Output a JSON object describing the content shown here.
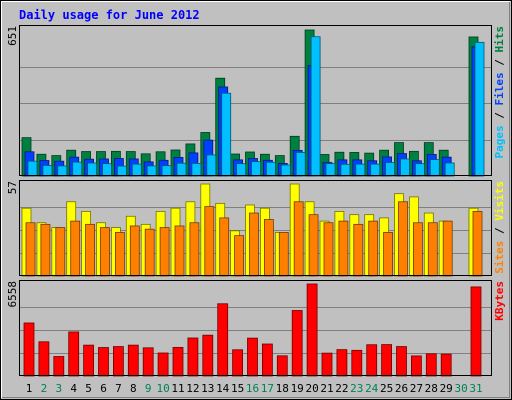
{
  "chart_data": [
    {
      "type": "bar",
      "title": "Daily usage for June 2012",
      "categories": [
        "1",
        "2",
        "3",
        "4",
        "5",
        "6",
        "7",
        "8",
        "9",
        "10",
        "11",
        "12",
        "13",
        "14",
        "15",
        "16",
        "17",
        "18",
        "19",
        "20",
        "21",
        "22",
        "23",
        "24",
        "25",
        "26",
        "27",
        "28",
        "29",
        "30",
        "31"
      ],
      "weekend_days": [
        "2",
        "3",
        "9",
        "10",
        "16",
        "17",
        "23",
        "24",
        "30",
        "31"
      ],
      "ymax_label": "651",
      "axis_legend": [
        {
          "text": "Pages",
          "color": "#00c0ff"
        },
        {
          "text": " / ",
          "color": "#000000"
        },
        {
          "text": "Files",
          "color": "#0040ff"
        },
        {
          "text": " / ",
          "color": "#000000"
        },
        {
          "text": "Hits",
          "color": "#008040"
        }
      ],
      "ylim": [
        0,
        651
      ],
      "grid": true,
      "series": [
        {
          "name": "Hits",
          "color": "#008040",
          "values": [
            171,
            97,
            91,
            115,
            109,
            109,
            110,
            109,
            99,
            108,
            116,
            143,
            194,
            436,
            98,
            107,
            97,
            91,
            177,
            651,
            96,
            106,
            105,
            102,
            115,
            149,
            110,
            149,
            115,
            0,
            620
          ]
        },
        {
          "name": "Files",
          "color": "#0040ff",
          "values": [
            108,
            69,
            66,
            84,
            75,
            76,
            78,
            76,
            63,
            70,
            83,
            103,
            160,
            397,
            72,
            78,
            70,
            56,
            114,
            492,
            60,
            72,
            72,
            68,
            85,
            100,
            68,
            96,
            84,
            0,
            576
          ]
        },
        {
          "name": "Pages",
          "color": "#00c0ff",
          "values": [
            66,
            47,
            45,
            62,
            58,
            55,
            44,
            53,
            45,
            46,
            57,
            56,
            94,
            369,
            55,
            64,
            61,
            49,
            105,
            621,
            55,
            52,
            53,
            53,
            60,
            76,
            55,
            73,
            58,
            0,
            596
          ]
        }
      ]
    },
    {
      "type": "bar",
      "ymax_label": "57",
      "axis_legend": [
        {
          "text": "Sites",
          "color": "#ff8000"
        },
        {
          "text": " / ",
          "color": "#000000"
        },
        {
          "text": "Visits",
          "color": "#ffff00"
        }
      ],
      "ylim": [
        0,
        57
      ],
      "grid": true,
      "series": [
        {
          "name": "Visits",
          "color": "#ffff00",
          "values": [
            42,
            33,
            30,
            46,
            40,
            33,
            30,
            37,
            32,
            40,
            42,
            46,
            57,
            45,
            28,
            44,
            42,
            27,
            57,
            46,
            34,
            40,
            38,
            38,
            36,
            51,
            49,
            39,
            34,
            0,
            42
          ]
        },
        {
          "name": "Sites",
          "color": "#ff8000",
          "values": [
            33,
            32,
            30,
            34,
            32,
            30,
            27,
            31,
            29,
            30,
            31,
            33,
            43,
            36,
            25,
            39,
            35,
            27,
            46,
            38,
            33,
            34,
            32,
            34,
            27,
            46,
            33,
            33,
            34,
            0,
            40
          ]
        }
      ]
    },
    {
      "type": "bar",
      "ymax_label": "6558",
      "axis_legend": [
        {
          "text": "KBytes",
          "color": "#ff0000"
        }
      ],
      "ylim": [
        0,
        6558
      ],
      "grid": true,
      "series": [
        {
          "name": "KBytes",
          "color": "#ff0000",
          "values": [
            3780,
            2440,
            1390,
            3140,
            2200,
            2030,
            2100,
            2200,
            2010,
            1640,
            2040,
            2710,
            2910,
            5150,
            1870,
            2700,
            2280,
            1440,
            4670,
            6558,
            1630,
            1880,
            1830,
            2230,
            2240,
            2100,
            1430,
            1580,
            1560,
            0,
            6350
          ]
        }
      ]
    }
  ]
}
